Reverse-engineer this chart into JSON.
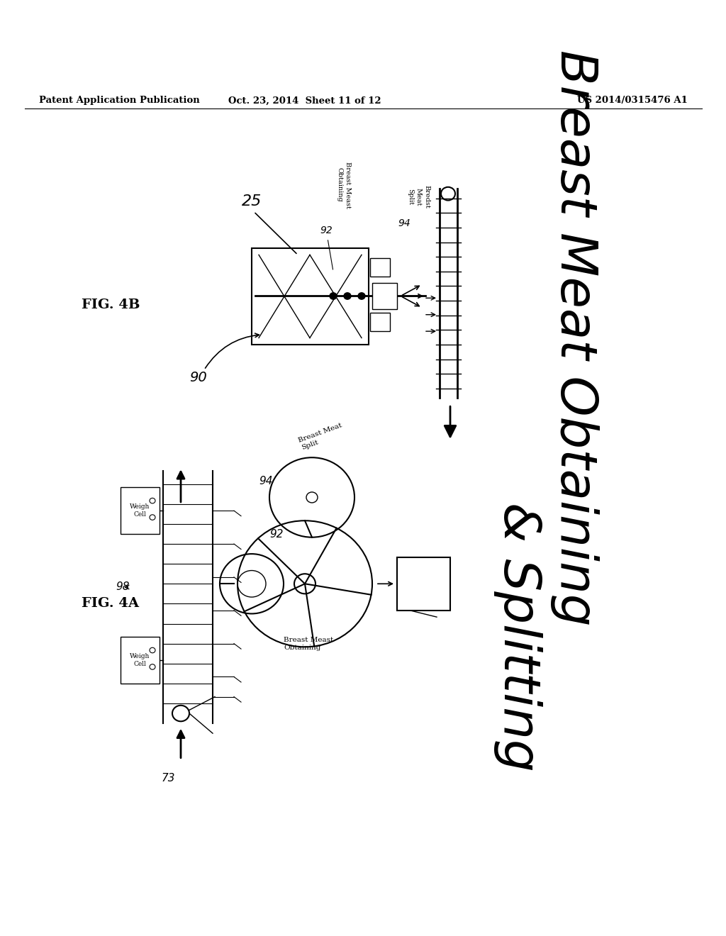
{
  "background_color": "#ffffff",
  "header_left": "Patent Application Publication",
  "header_center": "Oct. 23, 2014  Sheet 11 of 12",
  "header_right": "US 2014/0315476 A1",
  "fig_label_4A": "FIG. 4A",
  "fig_label_4B": "FIG. 4B",
  "big_text_line1": "Breast Meat Obtaining",
  "big_text_line2": "& Splitting",
  "label_92": "92",
  "label_94": "94",
  "label_98": "98",
  "label_73": "73",
  "label_25": "25",
  "label_90": "90",
  "text_breast_meast_obtaining": "Breast Meast\nObtaining",
  "text_breast_meat_split": "Breast Meat\nSplit",
  "text_bredst_split": "Bredst\nMeat\nSplit",
  "text_breast_meast_obtaining_b": "Breast Meast\nObtaining",
  "weigh_cell": "Weigh\nCell"
}
